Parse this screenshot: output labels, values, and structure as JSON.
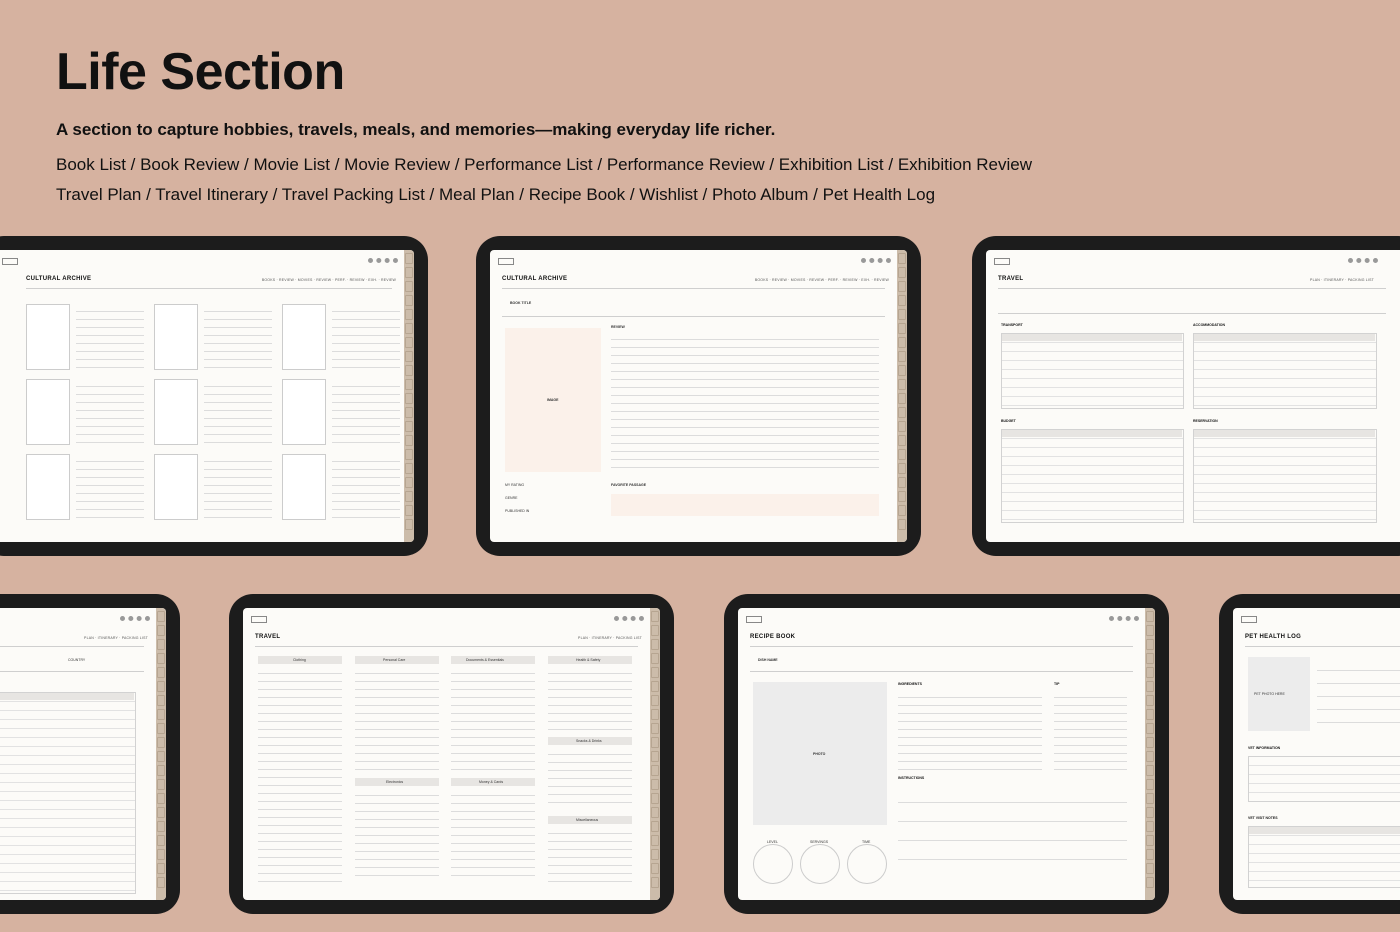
{
  "header": {
    "title": "Life Section",
    "subtitle": "A section to capture hobbies, travels, meals, and memories—making everyday life richer.",
    "list_line1": "Book List / Book Review / Movie List / Movie Review / Performance List / Performance Review / Exhibition List / Exhibition Review",
    "list_line2": "Travel Plan / Travel Itinerary / Travel Packing List / Meal Plan / Recipe Book / Wishlist / Photo Album / Pet Health Log"
  },
  "pages": {
    "book_list": {
      "title": "CULTURAL ARCHIVE",
      "nav": "BOOKS · REVIEW · MOVIES · REVIEW · PERF. · REVIEW · EXH. · REVIEW"
    },
    "book_review": {
      "title": "CULTURAL ARCHIVE",
      "nav": "BOOKS · REVIEW · MOVIES · REVIEW · PERF. · REVIEW · EXH. · REVIEW",
      "book_title": "BOOK TITLE",
      "image": "IMAGE",
      "review": "REVIEW",
      "favorite": "FAVORITE PASSAGE",
      "rating": "MY RATING",
      "genre": "GENRE",
      "published": "PUBLISHED IN"
    },
    "travel_plan": {
      "title": "TRAVEL",
      "nav": "PLAN · ITINERARY · PACKING LIST",
      "transport": "TRANSPORT",
      "accommodation": "ACCOMMODATION",
      "budget": "BUDGET",
      "reservation": "RESERVATION"
    },
    "itinerary": {
      "nav": "PLAN · ITINERARY · PACKING LIST",
      "country": "COUNTRY"
    },
    "packing": {
      "title": "TRAVEL",
      "nav": "PLAN · ITINERARY · PACKING LIST",
      "cols": [
        "Clothing",
        "Personal Care",
        "Documents & Essentials",
        "Health & Safety"
      ],
      "cols2": [
        "Electronics",
        "Money & Cards"
      ],
      "snacks": "Snacks & Drinks",
      "misc": "Miscellaneous"
    },
    "recipe": {
      "title": "RECIPE BOOK",
      "dish": "DISH NAME",
      "photo": "PHOTO",
      "ingredients": "INGREDIENTS",
      "tip": "TIP",
      "instructions": "INSTRUCTIONS",
      "level": "LEVEL",
      "servings": "SERVINGS",
      "time": "TIME"
    },
    "pet": {
      "title": "PET HEALTH LOG",
      "photo": "PET PHOTO HERE",
      "vet_info": "VET INFORMATION",
      "vet_notes": "VET VISIT NOTES"
    }
  }
}
